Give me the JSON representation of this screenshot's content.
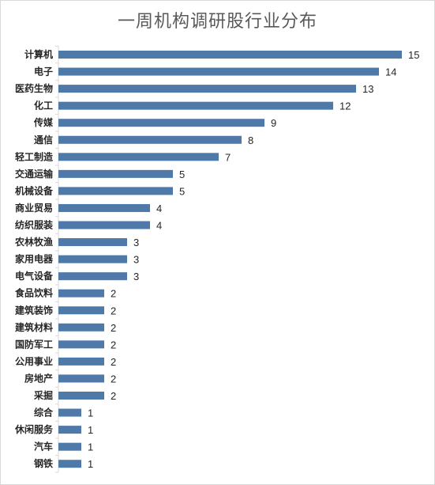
{
  "chart_data": {
    "type": "bar",
    "orientation": "horizontal",
    "title": "一周机构调研股行业分布",
    "xlabel": "",
    "ylabel": "",
    "xlim": [
      0,
      15
    ],
    "grid": false,
    "legend": "none",
    "bar_color": "#4f79a8",
    "categories": [
      "计算机",
      "电子",
      "医药生物",
      "化工",
      "传媒",
      "通信",
      "轻工制造",
      "交通运输",
      "机械设备",
      "商业贸易",
      "纺织服装",
      "农林牧渔",
      "家用电器",
      "电气设备",
      "食品饮料",
      "建筑装饰",
      "建筑材料",
      "国防军工",
      "公用事业",
      "房地产",
      "采掘",
      "综合",
      "休闲服务",
      "汽车",
      "钢铁"
    ],
    "values": [
      15,
      14,
      13,
      12,
      9,
      8,
      7,
      5,
      5,
      4,
      4,
      3,
      3,
      3,
      2,
      2,
      2,
      2,
      2,
      2,
      2,
      1,
      1,
      1,
      1
    ]
  }
}
